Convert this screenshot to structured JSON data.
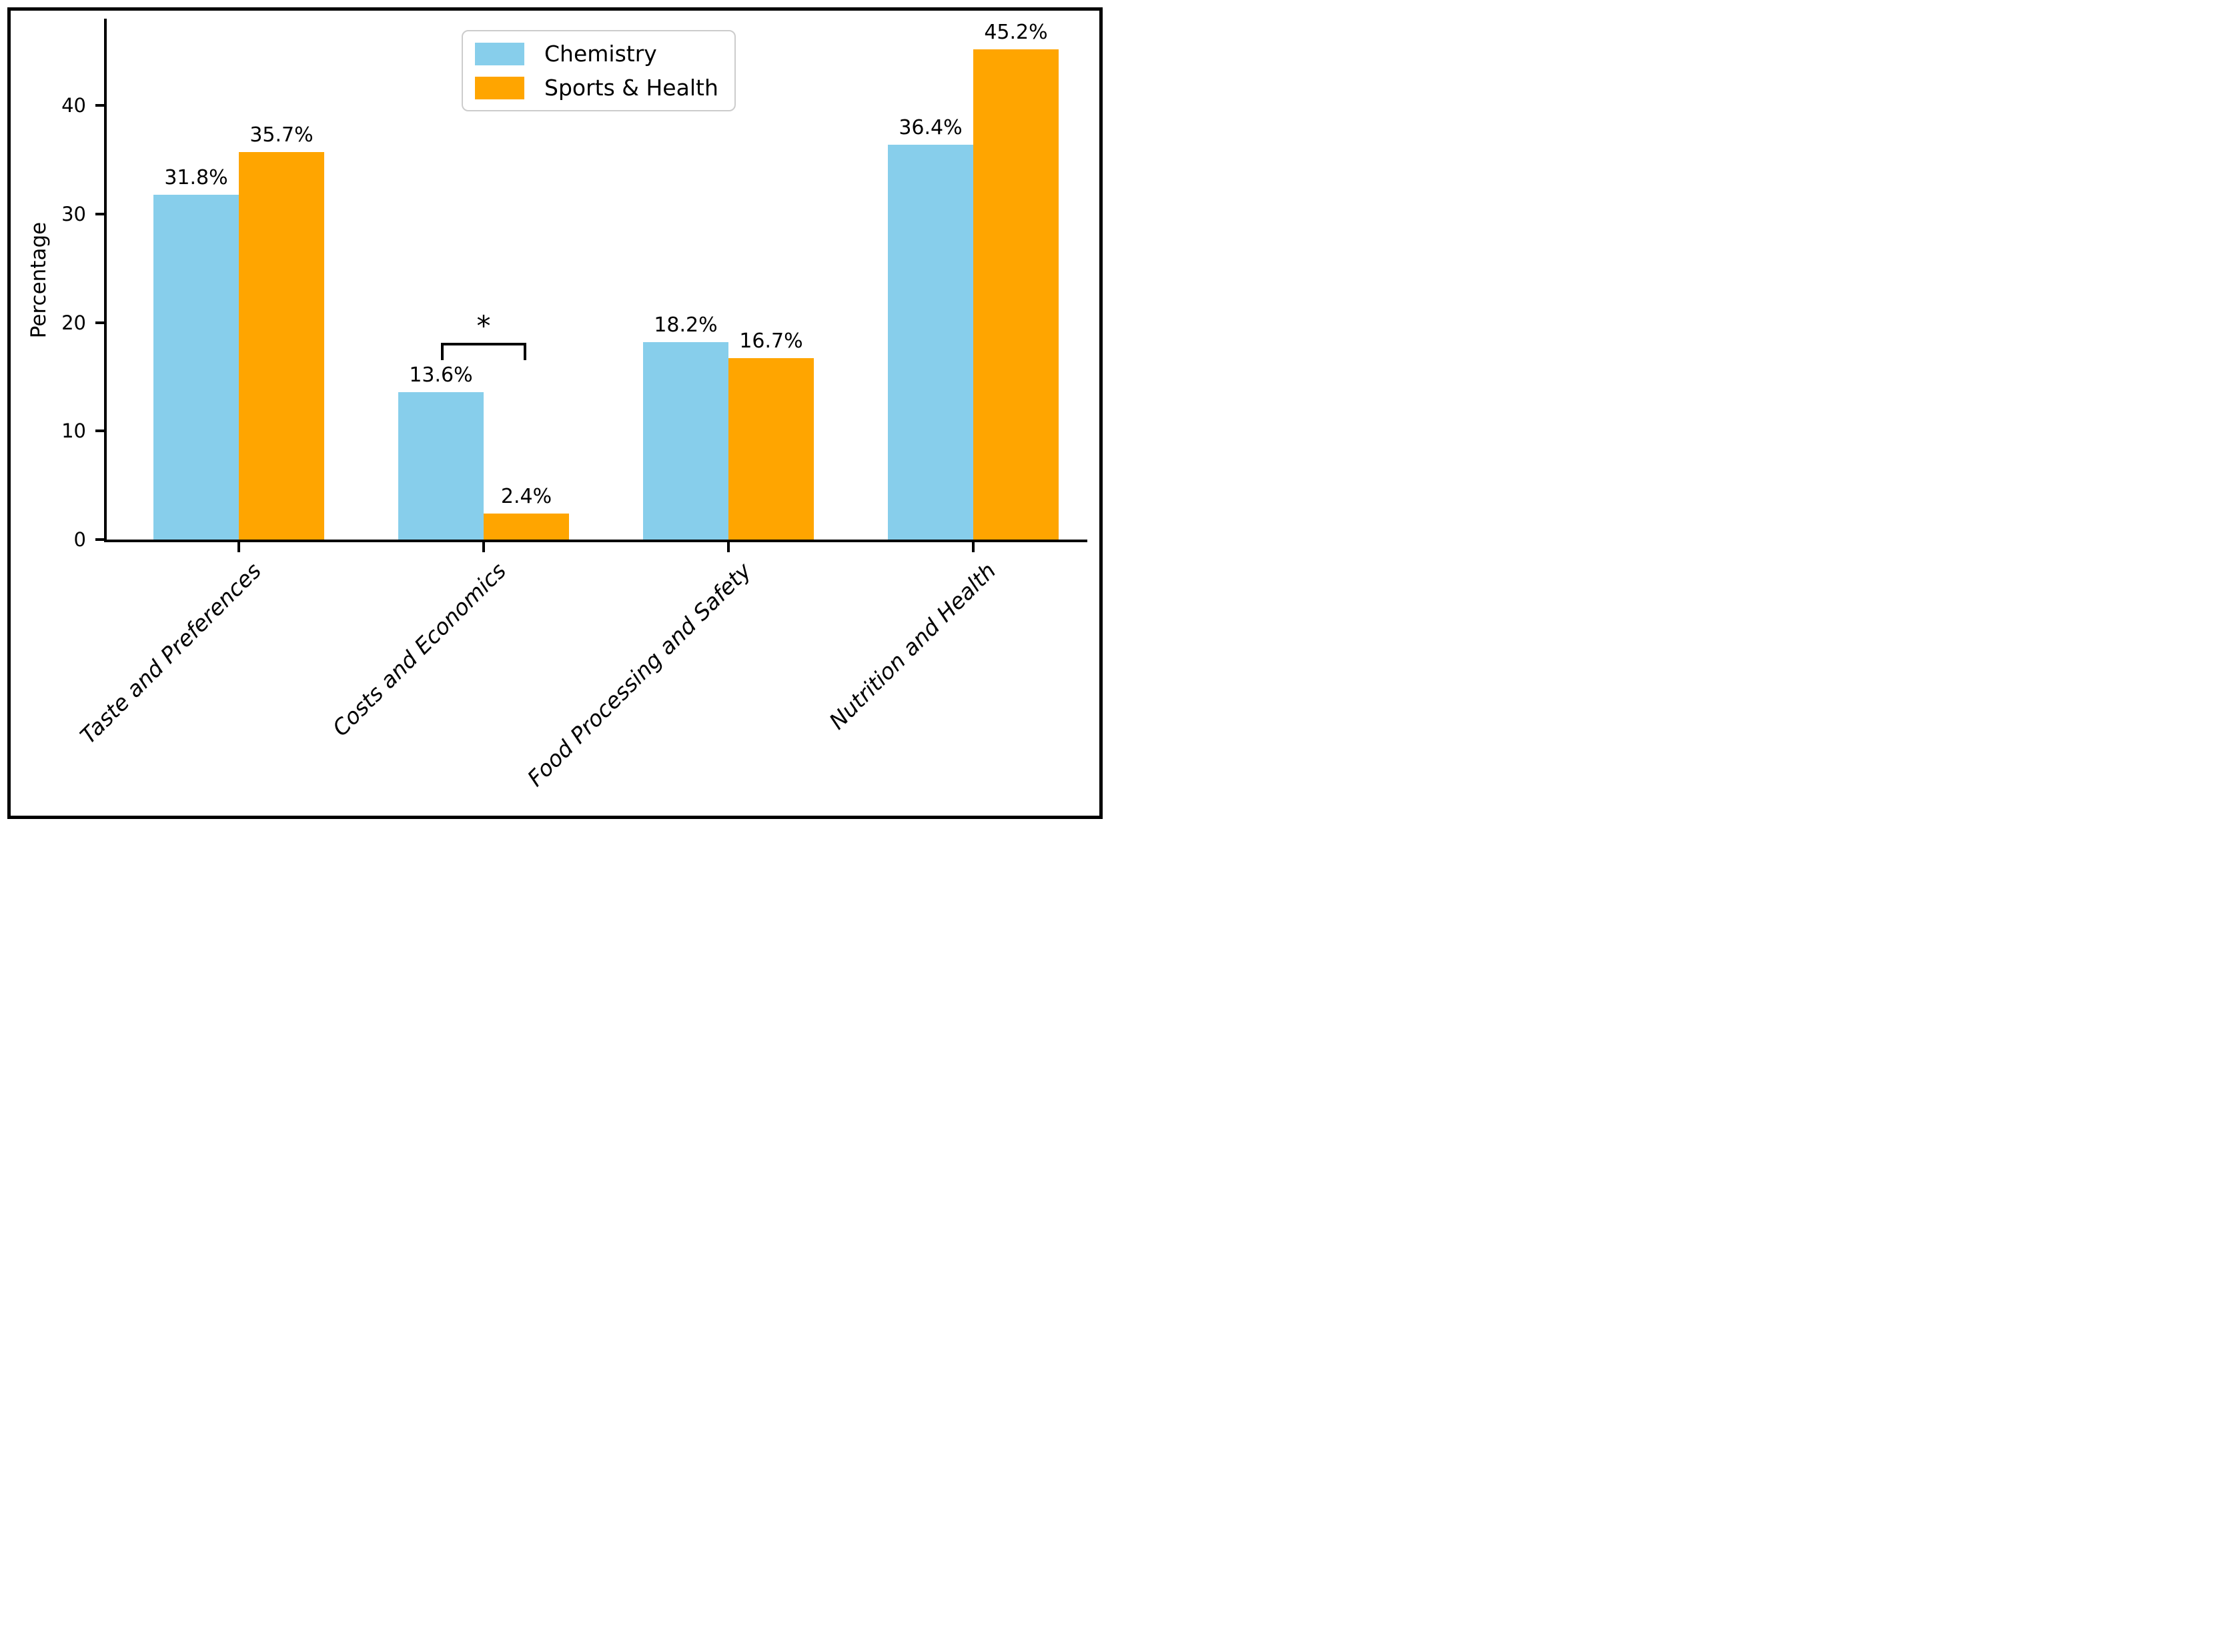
{
  "chart_data": {
    "type": "bar",
    "title": "",
    "xlabel": "",
    "ylabel": "Percentage",
    "categories": [
      "Taste and Preferences",
      "Costs and Economics",
      "Food Processing and Safety",
      "Nutrition and Health"
    ],
    "series": [
      {
        "name": "Chemistry",
        "color": "#87CEEB",
        "values": [
          31.8,
          13.6,
          18.2,
          36.4
        ]
      },
      {
        "name": "Sports & Health",
        "color": "#FFA500",
        "values": [
          35.7,
          2.4,
          16.7,
          45.2
        ]
      }
    ],
    "value_suffix": "%",
    "yticks": [
      0,
      10,
      20,
      30,
      40
    ],
    "ylim": [
      0,
      48
    ],
    "grid": false,
    "legend_position": "top-center",
    "annotation": {
      "type": "significance-bracket",
      "category_index": 1,
      "between_series": [
        "Chemistry",
        "Sports & Health"
      ],
      "label": "*"
    }
  },
  "figure": {
    "background": "#ffffff",
    "frame_color": "#000000",
    "axis_color": "#000000",
    "text_color": "#000000",
    "legend_border_color": "#cccccc"
  }
}
